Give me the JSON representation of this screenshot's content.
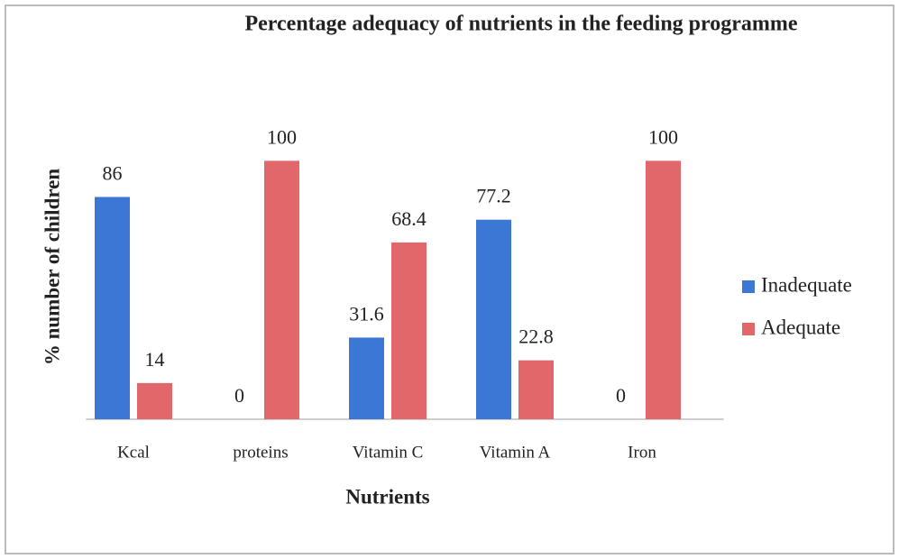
{
  "chart_data": {
    "type": "bar",
    "title": "Percentage  adequacy of nutrients in the feeding programme",
    "x_label": "Nutrients",
    "y_label": "% number of children",
    "categories": [
      "Kcal",
      "proteins",
      "Vitamin C",
      "Vitamin A",
      "Iron"
    ],
    "series": [
      {
        "name": "Inadequate",
        "color": "#3d77d6",
        "values": [
          86,
          0,
          31.6,
          77.2,
          0
        ]
      },
      {
        "name": "Adequate",
        "color": "#e2676a",
        "values": [
          14,
          100,
          68.4,
          22.8,
          100
        ]
      }
    ],
    "ylim": [
      0,
      120
    ],
    "legend": "right"
  }
}
